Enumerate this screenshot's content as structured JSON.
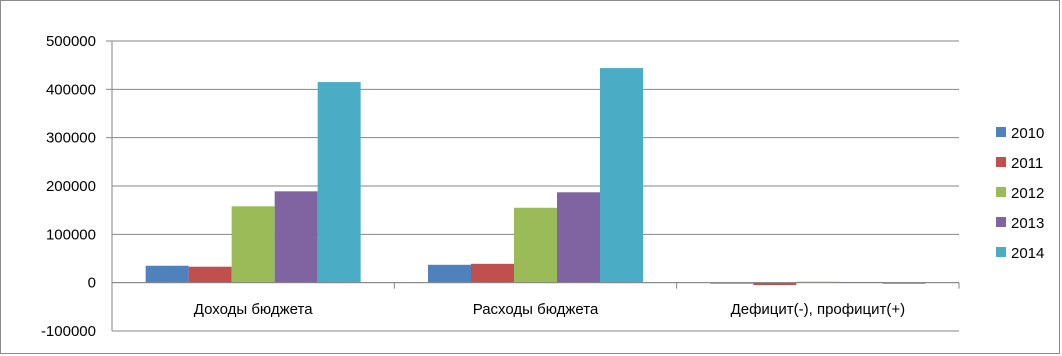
{
  "chart_data": {
    "type": "bar",
    "categories": [
      "Доходы бюджета",
      "Расходы бюджета",
      "Дефицит(-), профицит(+)"
    ],
    "series": [
      {
        "name": "2010",
        "color": "#4f81bd",
        "values": [
          35000,
          37000,
          -1500
        ]
      },
      {
        "name": "2011",
        "color": "#c0504d",
        "values": [
          33000,
          39000,
          -5000
        ]
      },
      {
        "name": "2012",
        "color": "#9bbb59",
        "values": [
          158000,
          155000,
          2000
        ]
      },
      {
        "name": "2013",
        "color": "#8064a2",
        "values": [
          189000,
          187000,
          1500
        ]
      },
      {
        "name": "2014",
        "color": "#4bacc6",
        "values": [
          415000,
          444000,
          -2500
        ]
      }
    ],
    "yticks": [
      "500000",
      "400000",
      "300000",
      "200000",
      "100000",
      "0",
      "-100000"
    ],
    "ylim": [
      -100000,
      500000
    ],
    "grid": true,
    "legend": "right"
  }
}
